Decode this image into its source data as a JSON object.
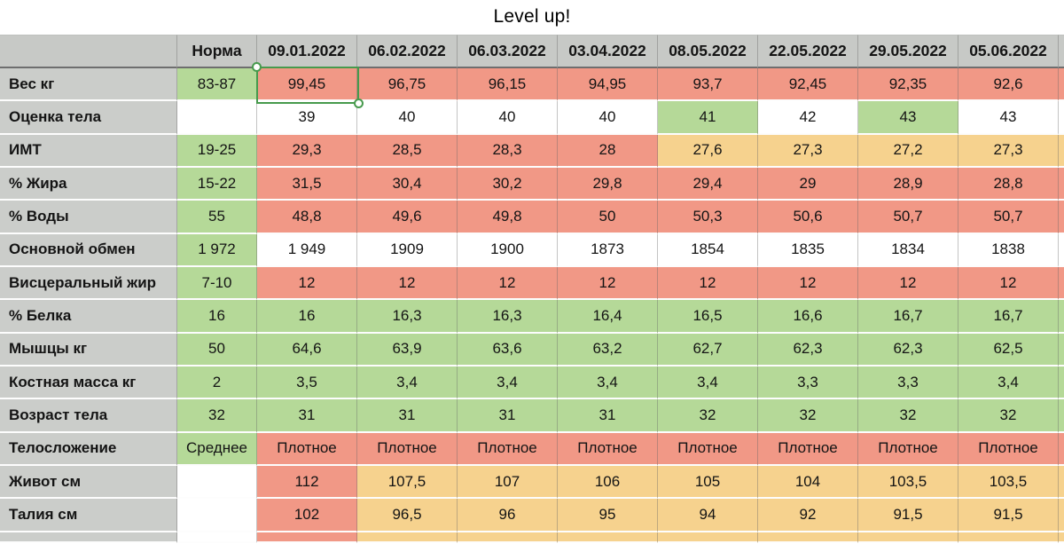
{
  "title": "Level up!",
  "colors": {
    "gray": "#c7c9c6",
    "label_gray": "#cbcdca",
    "green": "#b5d998",
    "salmon": "#f19886",
    "tan": "#f6d28e",
    "white": "#ffffff",
    "selection_border": "#479a4d",
    "header_divider": "#6e6e6e"
  },
  "table": {
    "norm_header": "Норма",
    "date_headers": [
      "09.01.2022",
      "06.02.2022",
      "06.03.2022",
      "03.04.2022",
      "08.05.2022",
      "22.05.2022",
      "29.05.2022",
      "05.06.2022"
    ],
    "rows": [
      {
        "label": "Вес кг",
        "norm": "83-87",
        "norm_color": "green",
        "values": [
          "99,45",
          "96,75",
          "96,15",
          "94,95",
          "93,7",
          "92,45",
          "92,35",
          "92,6"
        ],
        "cell_colors": [
          "salmon",
          "salmon",
          "salmon",
          "salmon",
          "salmon",
          "salmon",
          "salmon",
          "salmon"
        ]
      },
      {
        "label": "Оценка тела",
        "norm": "",
        "norm_color": "white",
        "values": [
          "39",
          "40",
          "40",
          "40",
          "41",
          "42",
          "43",
          "43"
        ],
        "cell_colors": [
          "white",
          "white",
          "white",
          "white",
          "green",
          "white",
          "green",
          "white"
        ]
      },
      {
        "label": "ИМТ",
        "norm": "19-25",
        "norm_color": "green",
        "values": [
          "29,3",
          "28,5",
          "28,3",
          "28",
          "27,6",
          "27,3",
          "27,2",
          "27,3"
        ],
        "cell_colors": [
          "salmon",
          "salmon",
          "salmon",
          "salmon",
          "tan",
          "tan",
          "tan",
          "tan"
        ]
      },
      {
        "label": "% Жира",
        "norm": "15-22",
        "norm_color": "green",
        "values": [
          "31,5",
          "30,4",
          "30,2",
          "29,8",
          "29,4",
          "29",
          "28,9",
          "28,8"
        ],
        "cell_colors": [
          "salmon",
          "salmon",
          "salmon",
          "salmon",
          "salmon",
          "salmon",
          "salmon",
          "salmon"
        ]
      },
      {
        "label": "% Воды",
        "norm": "55",
        "norm_color": "green",
        "values": [
          "48,8",
          "49,6",
          "49,8",
          "50",
          "50,3",
          "50,6",
          "50,7",
          "50,7"
        ],
        "cell_colors": [
          "salmon",
          "salmon",
          "salmon",
          "salmon",
          "salmon",
          "salmon",
          "salmon",
          "salmon"
        ]
      },
      {
        "label": "Основной обмен",
        "norm": "1 972",
        "norm_color": "green",
        "values": [
          "1 949",
          "1909",
          "1900",
          "1873",
          "1854",
          "1835",
          "1834",
          "1838"
        ],
        "cell_colors": [
          "white",
          "white",
          "white",
          "white",
          "white",
          "white",
          "white",
          "white"
        ]
      },
      {
        "label": "Висцеральный жир",
        "norm": "7-10",
        "norm_color": "green",
        "values": [
          "12",
          "12",
          "12",
          "12",
          "12",
          "12",
          "12",
          "12"
        ],
        "cell_colors": [
          "salmon",
          "salmon",
          "salmon",
          "salmon",
          "salmon",
          "salmon",
          "salmon",
          "salmon"
        ]
      },
      {
        "label": "% Белка",
        "norm": "16",
        "norm_color": "green",
        "values": [
          "16",
          "16,3",
          "16,3",
          "16,4",
          "16,5",
          "16,6",
          "16,7",
          "16,7"
        ],
        "cell_colors": [
          "green",
          "green",
          "green",
          "green",
          "green",
          "green",
          "green",
          "green"
        ]
      },
      {
        "label": "Мышцы кг",
        "norm": "50",
        "norm_color": "green",
        "values": [
          "64,6",
          "63,9",
          "63,6",
          "63,2",
          "62,7",
          "62,3",
          "62,3",
          "62,5"
        ],
        "cell_colors": [
          "green",
          "green",
          "green",
          "green",
          "green",
          "green",
          "green",
          "green"
        ]
      },
      {
        "label": "Костная масса кг",
        "norm": "2",
        "norm_color": "green",
        "values": [
          "3,5",
          "3,4",
          "3,4",
          "3,4",
          "3,4",
          "3,3",
          "3,3",
          "3,4"
        ],
        "cell_colors": [
          "green",
          "green",
          "green",
          "green",
          "green",
          "green",
          "green",
          "green"
        ]
      },
      {
        "label": "Возраст тела",
        "norm": "32",
        "norm_color": "green",
        "values": [
          "31",
          "31",
          "31",
          "31",
          "32",
          "32",
          "32",
          "32"
        ],
        "cell_colors": [
          "green",
          "green",
          "green",
          "green",
          "green",
          "green",
          "green",
          "green"
        ]
      },
      {
        "label": "Телосложение",
        "norm": "Среднее",
        "norm_color": "green",
        "values": [
          "Плотное",
          "Плотное",
          "Плотное",
          "Плотное",
          "Плотное",
          "Плотное",
          "Плотное",
          "Плотное"
        ],
        "cell_colors": [
          "salmon",
          "salmon",
          "salmon",
          "salmon",
          "salmon",
          "salmon",
          "salmon",
          "salmon"
        ]
      },
      {
        "label": "Живот см",
        "norm": "",
        "norm_color": "white",
        "values": [
          "112",
          "107,5",
          "107",
          "106",
          "105",
          "104",
          "103,5",
          "103,5"
        ],
        "cell_colors": [
          "salmon",
          "tan",
          "tan",
          "tan",
          "tan",
          "tan",
          "tan",
          "tan"
        ]
      },
      {
        "label": "Талия см",
        "norm": "",
        "norm_color": "white",
        "values": [
          "102",
          "96,5",
          "96",
          "95",
          "94",
          "92",
          "91,5",
          "91,5"
        ],
        "cell_colors": [
          "salmon",
          "tan",
          "tan",
          "tan",
          "tan",
          "tan",
          "tan",
          "tan"
        ]
      }
    ],
    "partial_bottom_row": {
      "norm_color": "white",
      "cell_colors": [
        "salmon",
        "tan",
        "tan",
        "tan",
        "tan",
        "tan",
        "tan",
        "tan"
      ]
    },
    "selection": {
      "row_label": "Вес кг",
      "column": "09.01.2022",
      "value": "99,45"
    }
  }
}
